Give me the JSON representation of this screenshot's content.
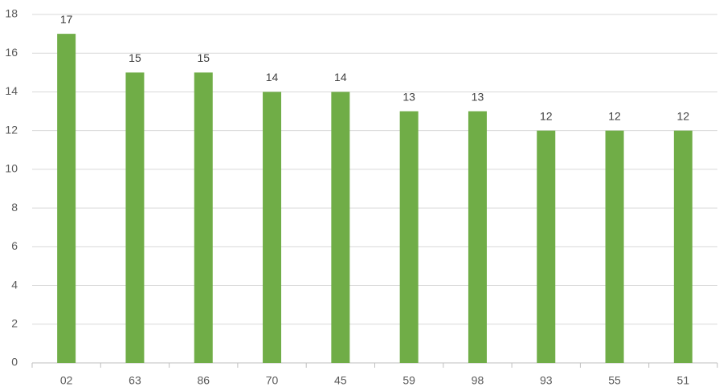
{
  "chart_data": {
    "type": "bar",
    "categories": [
      "02",
      "63",
      "86",
      "70",
      "45",
      "59",
      "98",
      "93",
      "55",
      "51"
    ],
    "values": [
      17,
      15,
      15,
      14,
      14,
      13,
      13,
      12,
      12,
      12
    ],
    "color": "#70ad47",
    "ylim": [
      0,
      18
    ],
    "yticks": [
      0,
      2,
      4,
      6,
      8,
      10,
      12,
      14,
      16,
      18
    ],
    "grid": true,
    "data_labels": true
  }
}
